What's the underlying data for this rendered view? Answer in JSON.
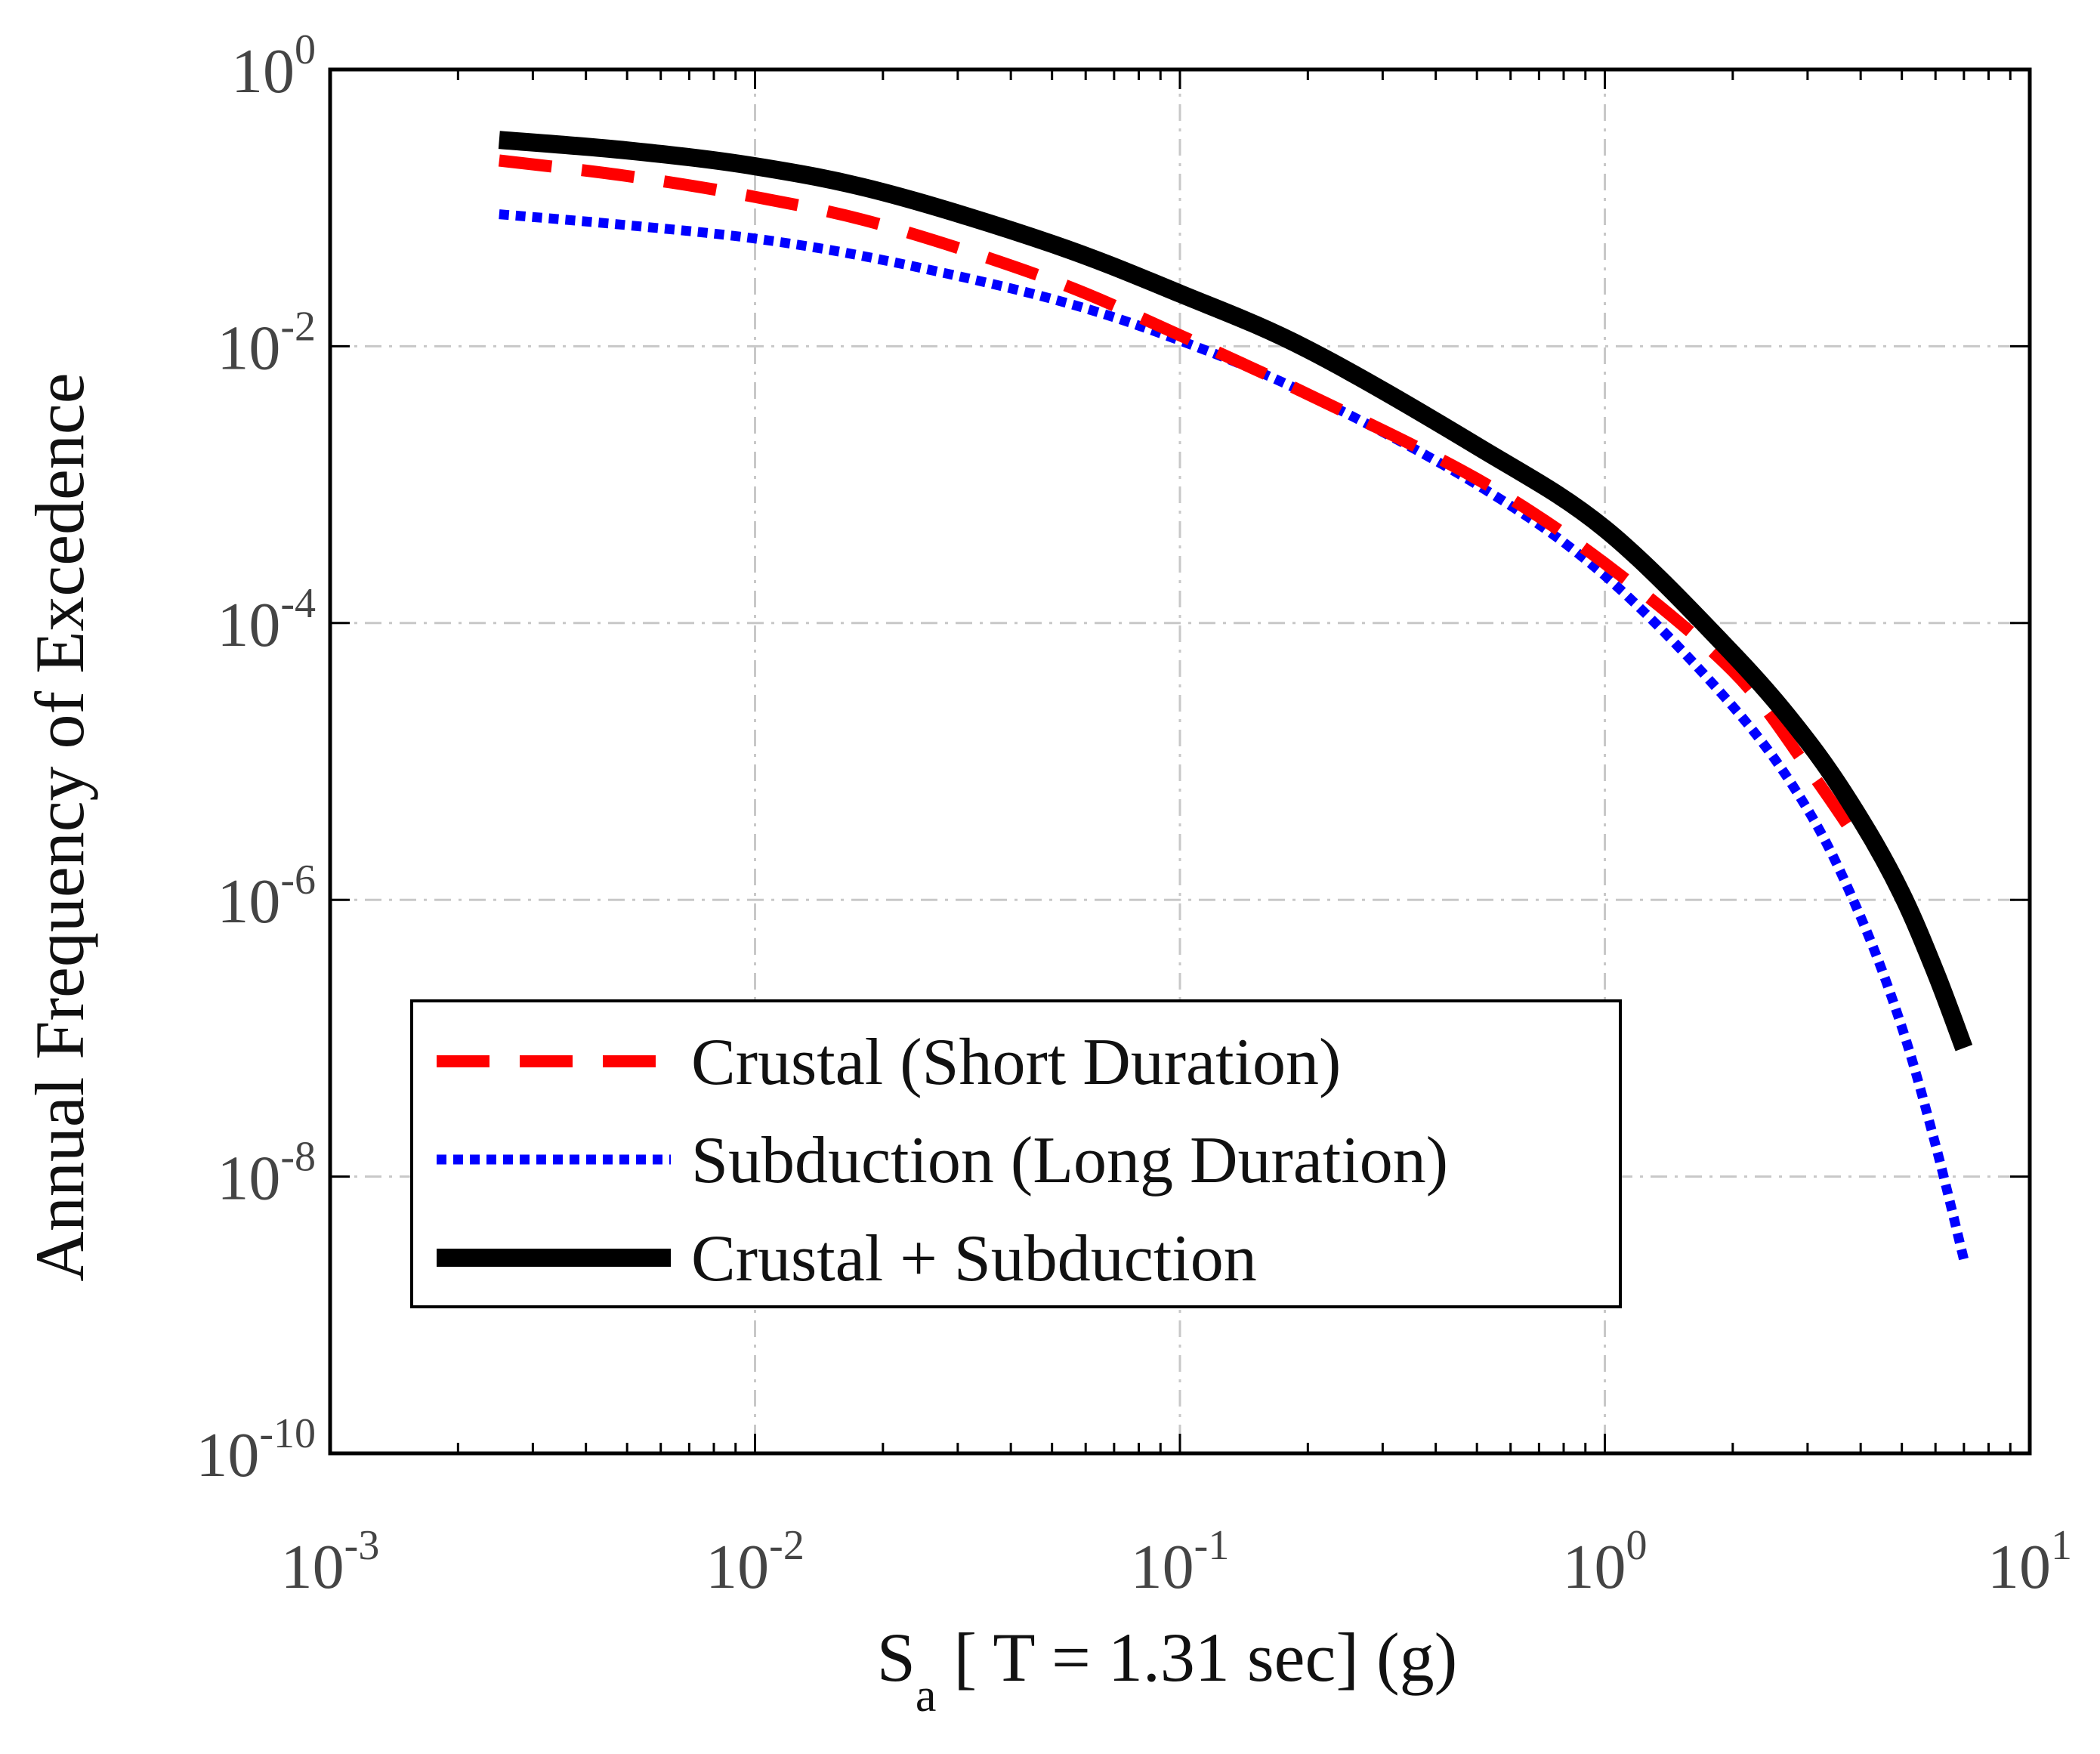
{
  "chart_data": {
    "type": "line",
    "xscale": "log",
    "yscale": "log",
    "title": "",
    "xlabel": {
      "main": "S",
      "sub": "a",
      "rest": " [ T = 1.31 sec] (g)"
    },
    "ylabel": "Annual Frequency of Excedence",
    "xlim": [
      0.001,
      10
    ],
    "ylim": [
      1e-10,
      1
    ],
    "grid": true,
    "legend_position": "bottom-left",
    "x_ticks": [
      {
        "base": "10",
        "exp": "-3",
        "value": -3
      },
      {
        "base": "10",
        "exp": "-2",
        "value": -2
      },
      {
        "base": "10",
        "exp": "-1",
        "value": -1
      },
      {
        "base": "10",
        "exp": "0",
        "value": 0
      },
      {
        "base": "10",
        "exp": "1",
        "value": 1
      }
    ],
    "y_ticks": [
      {
        "base": "10",
        "exp": "0",
        "value": 0
      },
      {
        "base": "10",
        "exp": "-2",
        "value": -2
      },
      {
        "base": "10",
        "exp": "-4",
        "value": -4
      },
      {
        "base": "10",
        "exp": "-6",
        "value": -6
      },
      {
        "base": "10",
        "exp": "-8",
        "value": -8
      },
      {
        "base": "10",
        "exp": "-10",
        "value": -10
      }
    ],
    "series": [
      {
        "name": "Crustal (Short Duration)",
        "color": "#ff0000",
        "style": "dashed",
        "x": [
          0.0025,
          0.005,
          0.01,
          0.02,
          0.05,
          0.1,
          0.2,
          0.5,
          1.0,
          2.0,
          3.0,
          4.0
        ],
        "y": [
          0.22,
          0.17,
          0.12,
          0.075,
          0.03,
          0.012,
          0.0045,
          0.0011,
          0.00027,
          4.5e-05,
          9e-06,
          2.5e-06
        ]
      },
      {
        "name": "Subduction (Long Duration)",
        "color": "#0000ff",
        "style": "dotted",
        "x": [
          0.0025,
          0.005,
          0.01,
          0.02,
          0.05,
          0.1,
          0.2,
          0.5,
          1.0,
          2.0,
          3.0,
          4.0,
          5.0,
          6.0,
          7.0
        ],
        "y": [
          0.09,
          0.075,
          0.06,
          0.042,
          0.022,
          0.011,
          0.0045,
          0.001,
          0.00022,
          2.5e-05,
          4.5e-06,
          7.5e-07,
          1.2e-07,
          1.7e-08,
          2.5e-09
        ]
      },
      {
        "name": "Crustal + Subduction",
        "color": "#000000",
        "style": "solid",
        "x": [
          0.0025,
          0.005,
          0.01,
          0.02,
          0.05,
          0.1,
          0.2,
          0.5,
          1.0,
          2.0,
          3.0,
          4.0,
          5.0,
          6.0,
          7.0
        ],
        "y": [
          0.31,
          0.26,
          0.2,
          0.13,
          0.055,
          0.024,
          0.0095,
          0.0019,
          0.00048,
          6e-05,
          1.4e-05,
          3.8e-06,
          1.1e-06,
          3e-07,
          8.5e-08
        ]
      }
    ]
  }
}
